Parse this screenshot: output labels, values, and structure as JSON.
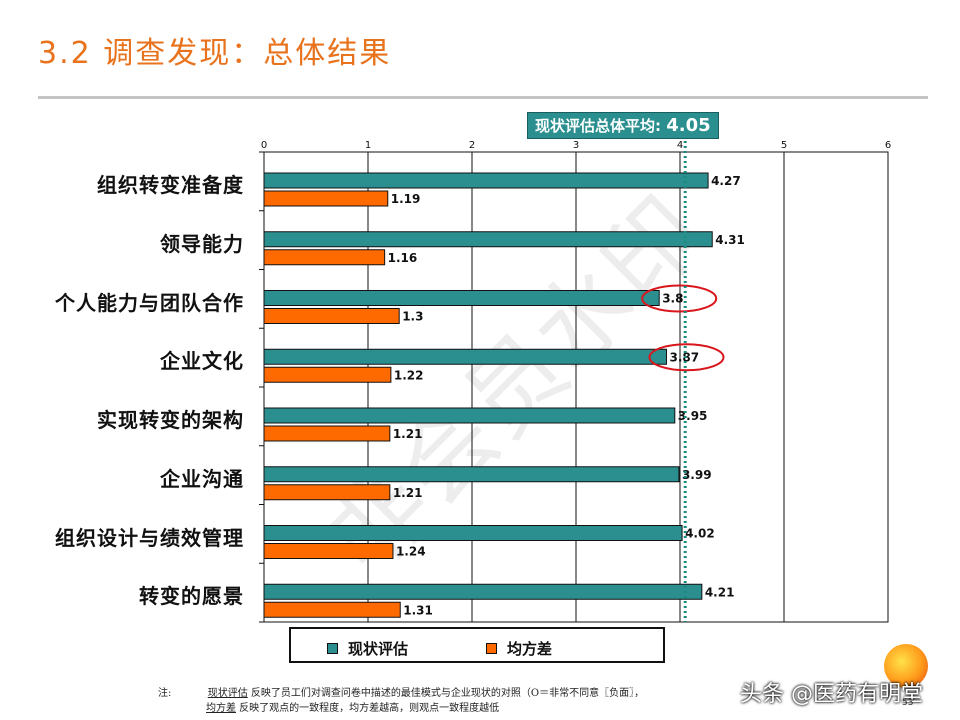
{
  "title": "3.2 调查发现：总体结果",
  "colors": {
    "series1": "#2b8f8f",
    "series2": "#ff6a00",
    "avg_line": "#1a8a7a",
    "circle": "#d9161c",
    "title": "#e8731c"
  },
  "average": {
    "label": "现状评估总体平均",
    "value": "4.05"
  },
  "watermark_bg": "非会员水印",
  "chart_data": {
    "type": "bar",
    "orientation": "horizontal",
    "categories": [
      "组织转变准备度",
      "领导能力",
      "个人能力与团队合作",
      "企业文化",
      "实现转变的架构",
      "企业沟通",
      "组织设计与绩效管理",
      "转变的愿景"
    ],
    "series": [
      {
        "name": "现状评估",
        "values": [
          4.27,
          4.31,
          3.8,
          3.87,
          3.95,
          3.99,
          4.02,
          4.21
        ]
      },
      {
        "name": "均方差",
        "values": [
          1.19,
          1.16,
          1.3,
          1.22,
          1.21,
          1.21,
          1.24,
          1.31
        ]
      }
    ],
    "xlim": [
      0,
      6
    ],
    "xticks": [
      "0",
      "1",
      "2",
      "3",
      "4",
      "5",
      "6"
    ],
    "reference_line": 4.05,
    "highlighted": [
      "个人能力与团队合作",
      "企业文化"
    ],
    "legend": "bottom"
  },
  "note": {
    "prefix": "注:",
    "line1_term": "现状评估",
    "line1_text": " 反映了员工们对调查问卷中描述的最佳模式与企业现状的对照（O＝非常不同意〖负面〗，",
    "line2_term": "均方差",
    "line2_text": " 反映了观点的一致程度，均方差越高，则观点一致程度越低"
  },
  "source_watermark": "头条 @医药有明堂",
  "page_number": "53"
}
